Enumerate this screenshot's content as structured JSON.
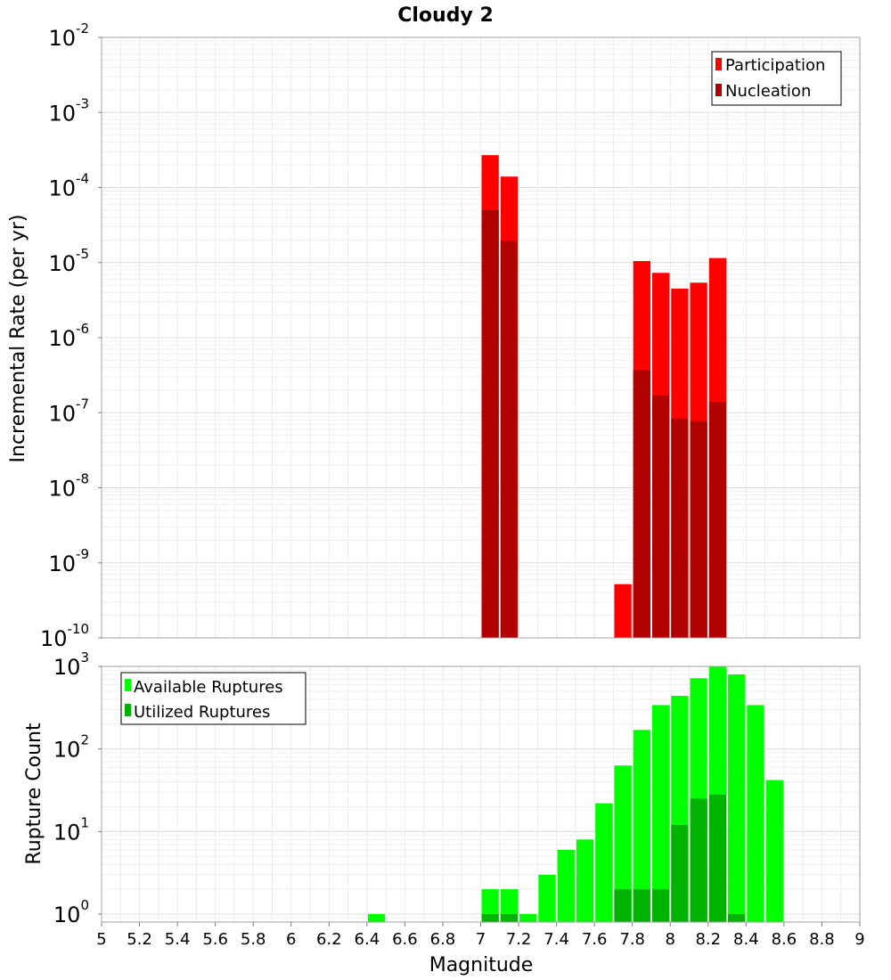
{
  "chart_data": [
    {
      "type": "bar",
      "title": "Cloudy 2",
      "xlabel": "",
      "ylabel": "Incremental Rate (per yr)",
      "yscale": "log",
      "ylim": [
        1e-10,
        0.01
      ],
      "ytick_exponents": [
        -10,
        -9,
        -8,
        -7,
        -6,
        -5,
        -4,
        -3,
        -2
      ],
      "xlim": [
        5,
        9
      ],
      "grid": true,
      "legend_position": "top-right",
      "bin_width": 0.1,
      "series": [
        {
          "name": "Participation",
          "color": "#ff0000",
          "x": [
            7.05,
            7.15,
            7.75,
            7.85,
            7.95,
            8.05,
            8.15,
            8.25
          ],
          "values": [
            0.00027,
            0.00014,
            5.2e-10,
            1.05e-05,
            7.3e-06,
            4.5e-06,
            5.4e-06,
            1.15e-05
          ]
        },
        {
          "name": "Nucleation",
          "color": "#b00000",
          "x": [
            7.05,
            7.15,
            7.85,
            7.95,
            8.05,
            8.15,
            8.25
          ],
          "values": [
            5e-05,
            1.95e-05,
            3.7e-07,
            1.7e-07,
            8.3e-08,
            7.7e-08,
            1.4e-07
          ]
        }
      ]
    },
    {
      "type": "bar",
      "title": "",
      "xlabel": "Magnitude",
      "ylabel": "Rupture Count",
      "yscale": "log",
      "ylim": [
        0.8,
        1000
      ],
      "ytick_exponents": [
        0,
        1,
        2,
        3
      ],
      "xlim": [
        5,
        9
      ],
      "x_ticks": [
        "5",
        "5.2",
        "5.4",
        "5.6",
        "5.8",
        "6",
        "6.2",
        "6.4",
        "6.6",
        "6.8",
        "7",
        "7.2",
        "7.4",
        "7.6",
        "7.8",
        "8",
        "8.2",
        "8.4",
        "8.6",
        "8.8",
        "9"
      ],
      "grid": true,
      "legend_position": "top-left",
      "bin_width": 0.1,
      "series": [
        {
          "name": "Available Ruptures",
          "color": "#00ff00",
          "x": [
            6.45,
            7.05,
            7.15,
            7.25,
            7.35,
            7.45,
            7.55,
            7.65,
            7.75,
            7.85,
            7.95,
            8.05,
            8.15,
            8.25,
            8.35,
            8.45,
            8.55
          ],
          "values": [
            1,
            2,
            2,
            1,
            3,
            6,
            8,
            22,
            63,
            170,
            340,
            440,
            720,
            1000,
            800,
            340,
            42
          ]
        },
        {
          "name": "Utilized Ruptures",
          "color": "#00b300",
          "x": [
            7.05,
            7.15,
            7.75,
            7.85,
            7.95,
            8.05,
            8.15,
            8.25,
            8.35
          ],
          "values": [
            1,
            1,
            2,
            2,
            2,
            12,
            25,
            28,
            1
          ]
        }
      ]
    }
  ]
}
